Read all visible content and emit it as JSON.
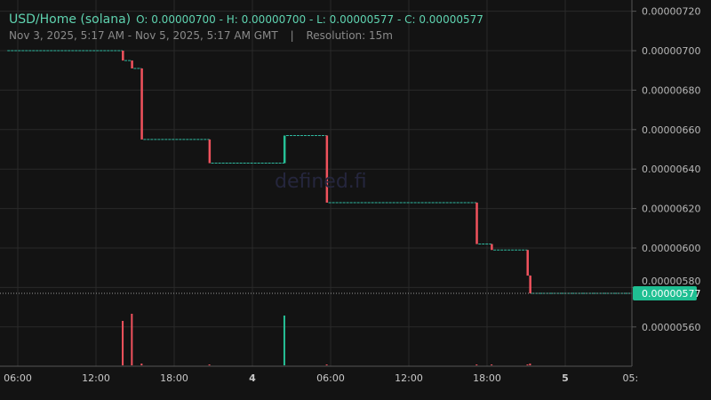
{
  "header": {
    "title": "USD/Home (solana)",
    "ohlc": "O: 0.00000700 - H: 0.00000700 - L: 0.00000577 - C: 0.00000577",
    "range": "Nov 3, 2025, 5:17 AM - Nov 5, 2025, 5:17 AM GMT",
    "sep": "|",
    "resolution": "Resolution: 15m"
  },
  "watermark": "defined.fi",
  "colors": {
    "up": "#26c197",
    "down": "#f0525d",
    "bg": "#131313",
    "grid": "#2a2a2a",
    "last": "#1fbf92"
  },
  "chart_data": {
    "type": "candlestick",
    "ylim": [
      5.4e-06,
      7.2e-06
    ],
    "y_ticks": [
      "0.00000720",
      "0.00000700",
      "0.00000680",
      "0.00000660",
      "0.00000640",
      "0.00000620",
      "0.00000600",
      "0.00000580",
      "0.00000560"
    ],
    "y_tick_values": [
      720,
      700,
      680,
      660,
      640,
      620,
      600,
      580,
      560
    ],
    "x_ticks": [
      {
        "h": 6,
        "label": "06:00"
      },
      {
        "h": 12,
        "label": "12:00"
      },
      {
        "h": 18,
        "label": "18:00"
      },
      {
        "h": 24,
        "label": "4"
      },
      {
        "h": 30,
        "label": "06:00"
      },
      {
        "h": 36,
        "label": "12:00"
      },
      {
        "h": 42,
        "label": "18:00"
      },
      {
        "h": 48,
        "label": "5"
      },
      {
        "h": 53,
        "label": "05:"
      }
    ],
    "x_range_hours": [
      5.2,
      53.1
    ],
    "price_unit": "1e-9",
    "candles": [
      {
        "h": 14.05,
        "o": 700,
        "c": 695,
        "v": 50
      },
      {
        "h": 14.75,
        "o": 695,
        "c": 691,
        "v": 58
      },
      {
        "h": 15.5,
        "o": 691,
        "c": 655,
        "v": 2
      },
      {
        "h": 20.7,
        "o": 655,
        "c": 643,
        "v": 1
      },
      {
        "h": 26.45,
        "o": 643,
        "c": 657,
        "v": 56
      },
      {
        "h": 29.7,
        "o": 657,
        "c": 623,
        "v": 1
      },
      {
        "h": 41.2,
        "o": 623,
        "c": 602,
        "v": 1
      },
      {
        "h": 42.35,
        "o": 602,
        "c": 599,
        "v": 1
      },
      {
        "h": 45.1,
        "o": 599,
        "c": 586,
        "v": 1
      },
      {
        "h": 45.3,
        "o": 586,
        "c": 577,
        "v": 2
      }
    ],
    "last_price": "0.00000577",
    "last_value": 577
  }
}
